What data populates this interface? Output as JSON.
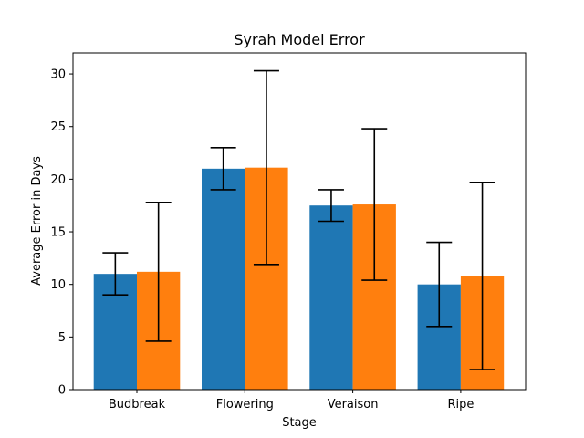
{
  "chart_data": {
    "type": "bar",
    "title": "Syrah Model Error",
    "xlabel": "Stage",
    "ylabel": "Average Error in Days",
    "categories": [
      "Budbreak",
      "Flowering",
      "Veraison",
      "Ripe"
    ],
    "ylim": [
      0,
      32
    ],
    "yticks": [
      0,
      5,
      10,
      15,
      20,
      25,
      30
    ],
    "grid": false,
    "legend": "none",
    "series": [
      {
        "color": "#1f77b4",
        "values": [
          11.0,
          21.0,
          17.5,
          10.0
        ],
        "errors": [
          2.0,
          2.0,
          1.5,
          4.0
        ]
      },
      {
        "color": "#ff7f0e",
        "values": [
          11.2,
          21.1,
          17.6,
          10.8
        ],
        "errors": [
          6.6,
          9.2,
          7.2,
          8.9
        ]
      }
    ]
  }
}
